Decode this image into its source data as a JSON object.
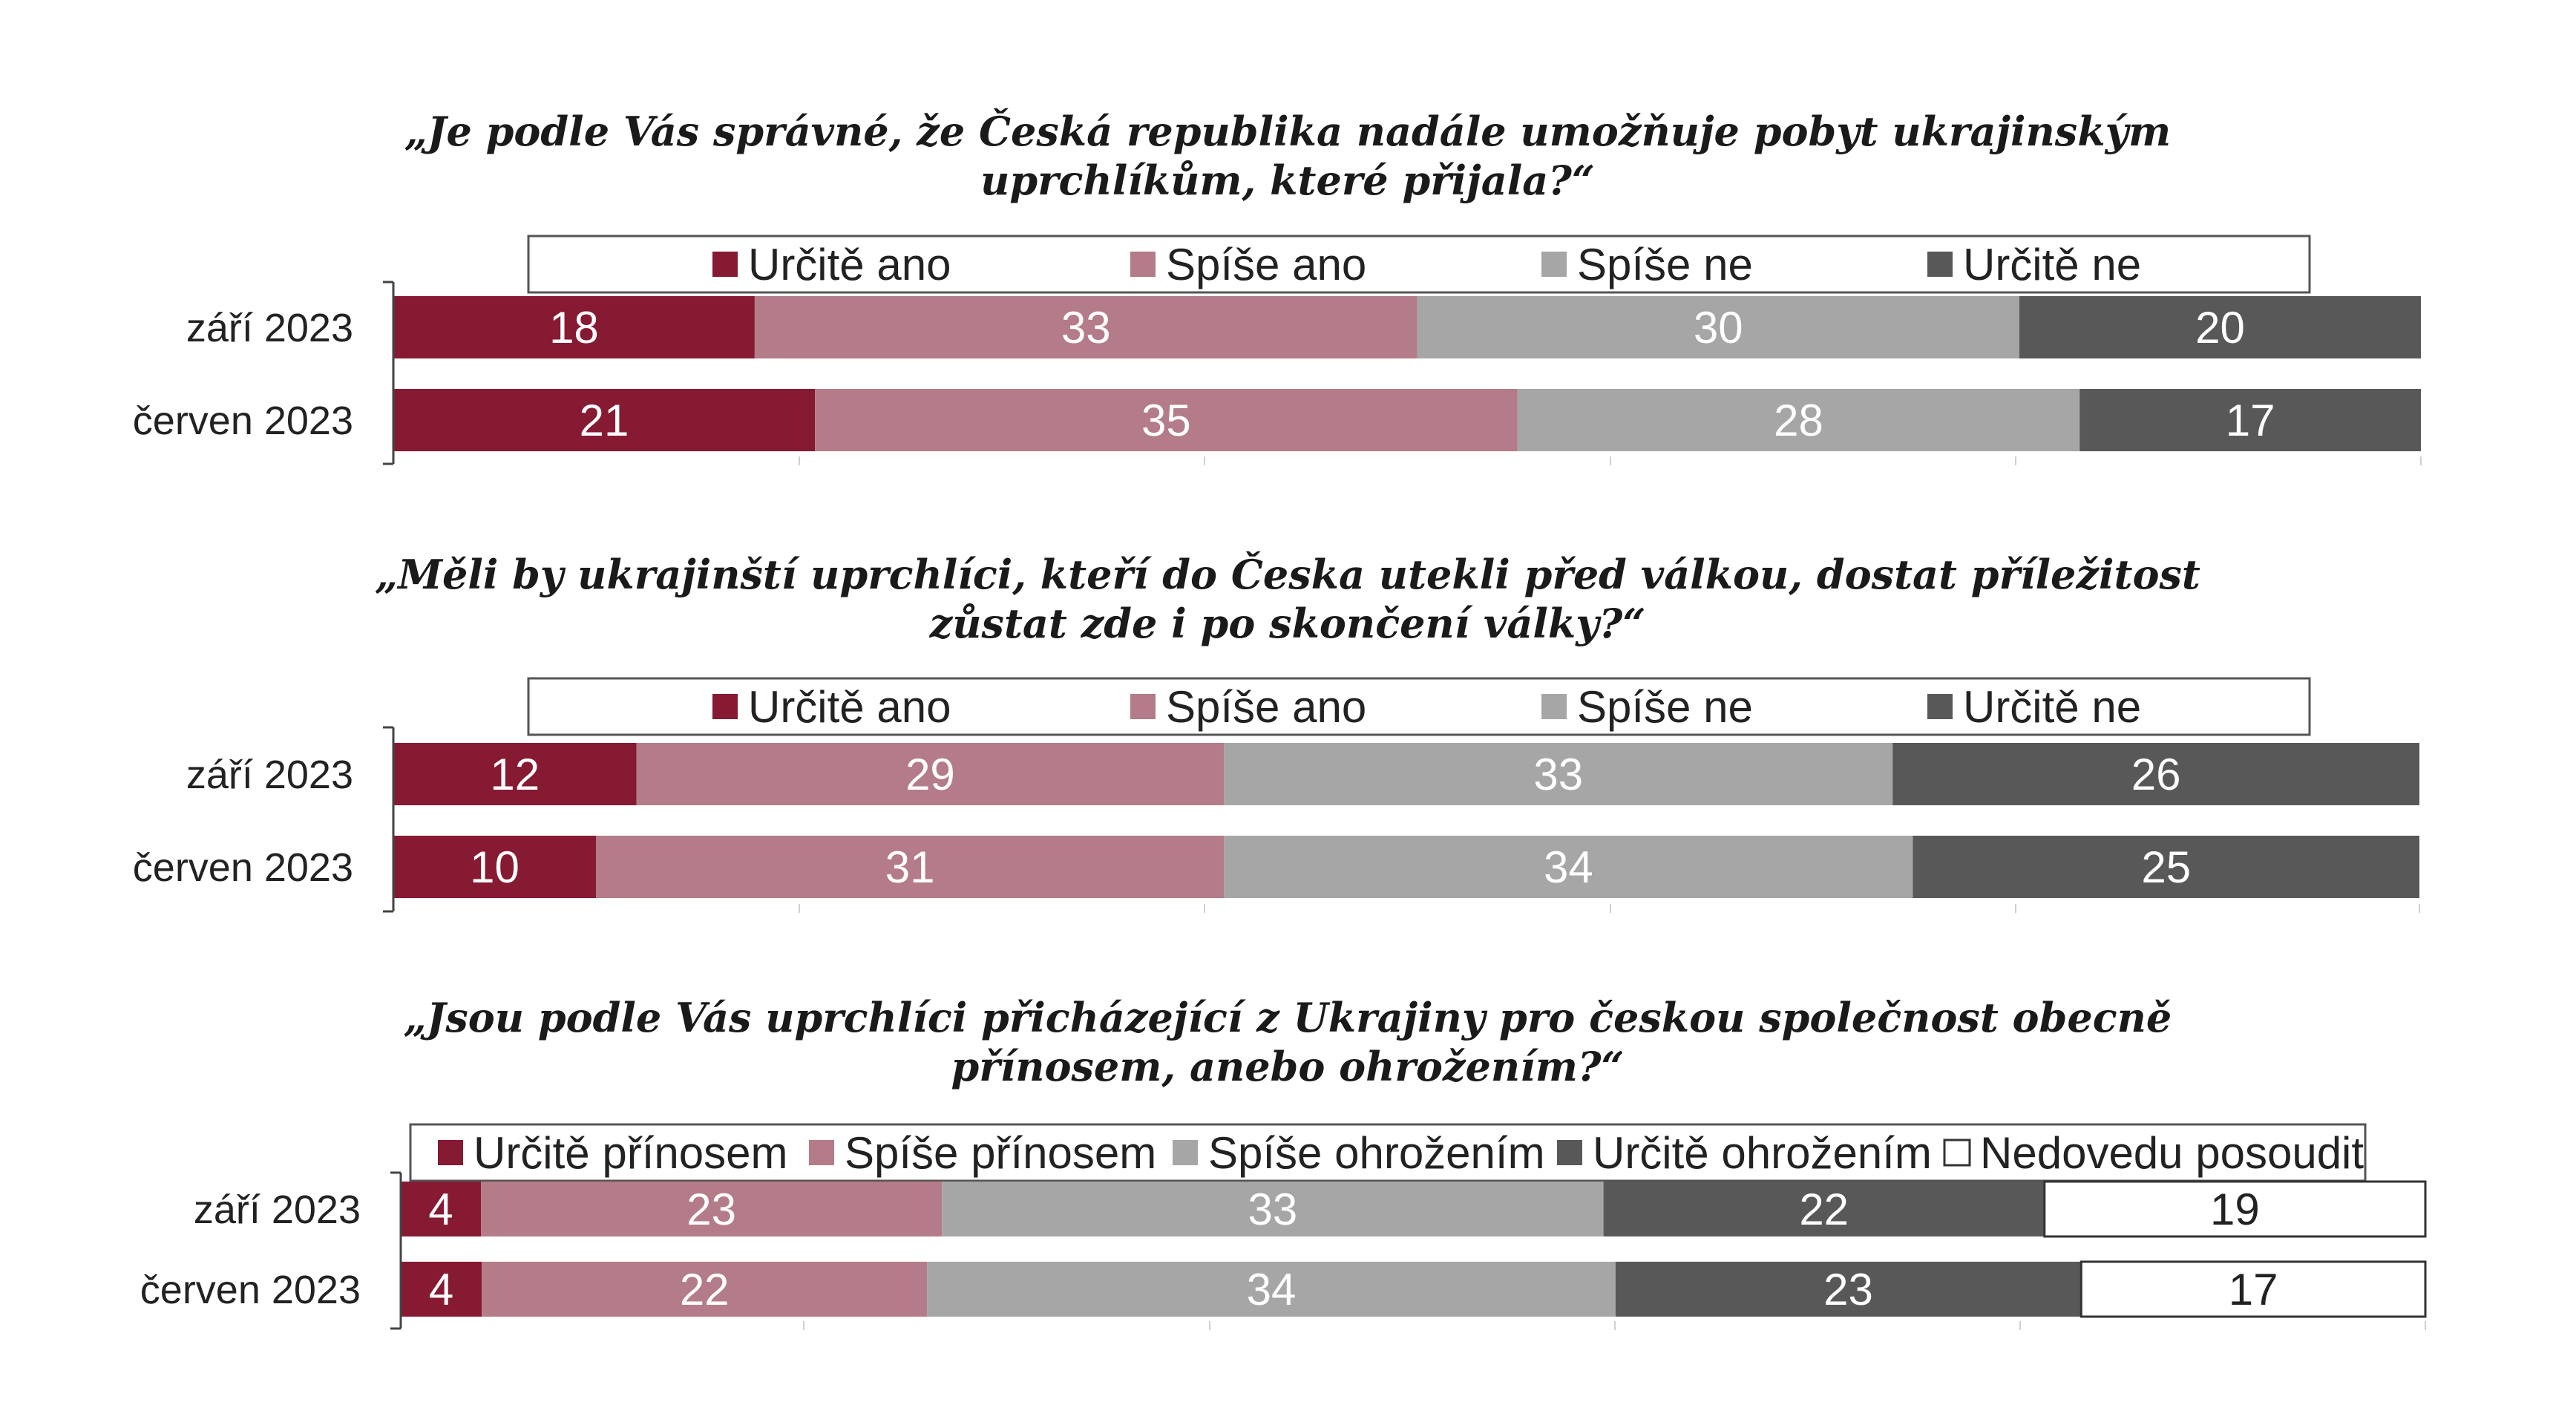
{
  "chart_data": [
    {
      "type": "bar",
      "orientation": "horizontal",
      "stacked": true,
      "title_lines": [
        "„Je podle Vás správné, že Česká republika nadále umožňuje pobyt ukrajinským",
        "uprchlíkům, které přijala?“"
      ],
      "categories": [
        "září 2023",
        "červen 2023"
      ],
      "series": [
        {
          "name": "Určitě ano",
          "color": "#861a33",
          "values": [
            18,
            21
          ]
        },
        {
          "name": "Spíše ano",
          "color": "#b47c88",
          "values": [
            33,
            35
          ]
        },
        {
          "name": "Spíše ne",
          "color": "#a6a6a6",
          "values": [
            30,
            28
          ]
        },
        {
          "name": "Určitě ne",
          "color": "#585858",
          "values": [
            20,
            17
          ]
        }
      ],
      "legend_position": "top",
      "grid": false
    },
    {
      "type": "bar",
      "orientation": "horizontal",
      "stacked": true,
      "title_lines": [
        "„Měli by ukrajinští uprchlíci, kteří do Česka utekli před válkou, dostat příležitost",
        "zůstat zde i po skončení války?“"
      ],
      "categories": [
        "září 2023",
        "červen 2023"
      ],
      "series": [
        {
          "name": "Určitě ano",
          "color": "#861a33",
          "values": [
            12,
            10
          ]
        },
        {
          "name": "Spíše ano",
          "color": "#b47c88",
          "values": [
            29,
            31
          ]
        },
        {
          "name": "Spíše ne",
          "color": "#a6a6a6",
          "values": [
            33,
            34
          ]
        },
        {
          "name": "Určitě ne",
          "color": "#585858",
          "values": [
            26,
            25
          ]
        }
      ],
      "legend_position": "top",
      "grid": false
    },
    {
      "type": "bar",
      "orientation": "horizontal",
      "stacked": true,
      "title_lines": [
        "„Jsou podle Vás uprchlíci přicházející z Ukrajiny pro českou společnost obecně",
        "přínosem, anebo ohrožením?“"
      ],
      "categories": [
        "září 2023",
        "červen 2023"
      ],
      "series": [
        {
          "name": "Určitě přínosem",
          "color": "#861a33",
          "values": [
            4,
            4
          ]
        },
        {
          "name": "Spíše přínosem",
          "color": "#b47c88",
          "values": [
            23,
            22
          ]
        },
        {
          "name": "Spíše ohrožením",
          "color": "#a6a6a6",
          "values": [
            33,
            34
          ]
        },
        {
          "name": "Určitě ohrožením",
          "color": "#585858",
          "values": [
            22,
            23
          ]
        },
        {
          "name": "Nedovedu posoudit",
          "color": "#ffffff",
          "values": [
            19,
            17
          ]
        }
      ],
      "legend_position": "top",
      "grid": false
    }
  ]
}
